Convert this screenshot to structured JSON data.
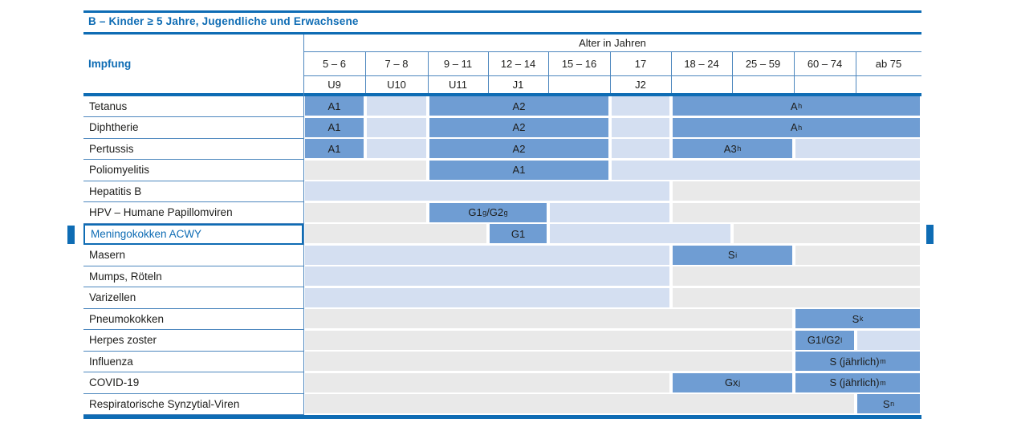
{
  "title": "B – Kinder ≥ 5 Jahre, Jugendliche und Erwachsene",
  "colors": {
    "accent": "#0e6cb4",
    "thin_line": "#4d87be",
    "cell_dark": "#6f9dd3",
    "cell_light": "#d4dff1",
    "cell_gray": "#e9e9e9",
    "text": "#1d1d1b"
  },
  "highlight_row": "Meningokokken ACWY",
  "table": {
    "col_group_label": "Alter in Jahren",
    "row_header_label": "Impfung",
    "age_columns": [
      "5 – 6",
      "7 – 8",
      "9 – 11",
      "12 – 14",
      "15 – 16",
      "17",
      "18 – 24",
      "25 – 59",
      "60 – 74",
      "ab 75"
    ],
    "exam_row": [
      "U9",
      "U10",
      "U11",
      "J1",
      "",
      "J2",
      "",
      "",
      "",
      ""
    ],
    "rows": [
      {
        "label": "Tetanus",
        "highlight": false,
        "bands": [
          {
            "from": 0,
            "to": 0,
            "type": "dark",
            "text": "A1"
          },
          {
            "from": 1,
            "to": 1,
            "type": "light",
            "text": ""
          },
          {
            "from": 2,
            "to": 4,
            "type": "dark",
            "text": "A2"
          },
          {
            "from": 5,
            "to": 5,
            "type": "light",
            "text": ""
          },
          {
            "from": 6,
            "to": 9,
            "type": "dark",
            "text": "A^h"
          }
        ]
      },
      {
        "label": "Diphtherie",
        "highlight": false,
        "bands": [
          {
            "from": 0,
            "to": 0,
            "type": "dark",
            "text": "A1"
          },
          {
            "from": 1,
            "to": 1,
            "type": "light",
            "text": ""
          },
          {
            "from": 2,
            "to": 4,
            "type": "dark",
            "text": "A2"
          },
          {
            "from": 5,
            "to": 5,
            "type": "light",
            "text": ""
          },
          {
            "from": 6,
            "to": 9,
            "type": "dark",
            "text": "A^h"
          }
        ]
      },
      {
        "label": "Pertussis",
        "highlight": false,
        "bands": [
          {
            "from": 0,
            "to": 0,
            "type": "dark",
            "text": "A1"
          },
          {
            "from": 1,
            "to": 1,
            "type": "light",
            "text": ""
          },
          {
            "from": 2,
            "to": 4,
            "type": "dark",
            "text": "A2"
          },
          {
            "from": 5,
            "to": 5,
            "type": "light",
            "text": ""
          },
          {
            "from": 6,
            "to": 7,
            "type": "dark",
            "text": "A3^h"
          },
          {
            "from": 8,
            "to": 9,
            "type": "light",
            "text": ""
          }
        ]
      },
      {
        "label": "Poliomyelitis",
        "highlight": false,
        "bands": [
          {
            "from": 0,
            "to": 1,
            "type": "gray",
            "text": ""
          },
          {
            "from": 2,
            "to": 4,
            "type": "dark",
            "text": "A1"
          },
          {
            "from": 5,
            "to": 9,
            "type": "light",
            "text": ""
          }
        ]
      },
      {
        "label": "Hepatitis B",
        "highlight": false,
        "bands": [
          {
            "from": 0,
            "to": 5,
            "type": "light",
            "text": ""
          },
          {
            "from": 6,
            "to": 9,
            "type": "gray",
            "text": ""
          }
        ]
      },
      {
        "label": "HPV – Humane Papillomviren",
        "highlight": false,
        "bands": [
          {
            "from": 0,
            "to": 1,
            "type": "gray",
            "text": ""
          },
          {
            "from": 2,
            "to": 3,
            "type": "dark",
            "text": "G1^g/G2^g"
          },
          {
            "from": 4,
            "to": 5,
            "type": "light",
            "text": ""
          },
          {
            "from": 6,
            "to": 9,
            "type": "gray",
            "text": ""
          }
        ]
      },
      {
        "label": "Meningokokken ACWY",
        "highlight": true,
        "bands": [
          {
            "from": 0,
            "to": 2,
            "type": "gray",
            "text": ""
          },
          {
            "from": 3,
            "to": 3,
            "type": "dark",
            "text": "G1"
          },
          {
            "from": 4,
            "to": 6,
            "type": "light",
            "text": ""
          },
          {
            "from": 7,
            "to": 9,
            "type": "gray",
            "text": ""
          }
        ]
      },
      {
        "label": "Masern",
        "highlight": false,
        "bands": [
          {
            "from": 0,
            "to": 5,
            "type": "light",
            "text": ""
          },
          {
            "from": 6,
            "to": 7,
            "type": "dark",
            "text": "S^i"
          },
          {
            "from": 8,
            "to": 9,
            "type": "gray",
            "text": ""
          }
        ]
      },
      {
        "label": "Mumps, Röteln",
        "highlight": false,
        "bands": [
          {
            "from": 0,
            "to": 5,
            "type": "light",
            "text": ""
          },
          {
            "from": 6,
            "to": 9,
            "type": "gray",
            "text": ""
          }
        ]
      },
      {
        "label": "Varizellen",
        "highlight": false,
        "bands": [
          {
            "from": 0,
            "to": 5,
            "type": "light",
            "text": ""
          },
          {
            "from": 6,
            "to": 9,
            "type": "gray",
            "text": ""
          }
        ]
      },
      {
        "label": "Pneumokokken",
        "highlight": false,
        "bands": [
          {
            "from": 0,
            "to": 7,
            "type": "gray",
            "text": ""
          },
          {
            "from": 8,
            "to": 9,
            "type": "dark",
            "text": "S^k"
          }
        ]
      },
      {
        "label": "Herpes zoster",
        "highlight": false,
        "bands": [
          {
            "from": 0,
            "to": 7,
            "type": "gray",
            "text": ""
          },
          {
            "from": 8,
            "to": 8,
            "type": "dark",
            "text": "G1^l/G2^l"
          },
          {
            "from": 9,
            "to": 9,
            "type": "light",
            "text": ""
          }
        ]
      },
      {
        "label": "Influenza",
        "highlight": false,
        "bands": [
          {
            "from": 0,
            "to": 7,
            "type": "gray",
            "text": ""
          },
          {
            "from": 8,
            "to": 9,
            "type": "dark",
            "text": "S (jährlich)^m"
          }
        ]
      },
      {
        "label": "COVID-19",
        "highlight": false,
        "bands": [
          {
            "from": 0,
            "to": 5,
            "type": "gray",
            "text": ""
          },
          {
            "from": 6,
            "to": 7,
            "type": "dark",
            "text": "Gx^j"
          },
          {
            "from": 8,
            "to": 9,
            "type": "dark",
            "text": "S (jährlich)^m"
          }
        ]
      },
      {
        "label": "Respiratorische Synzytial-Viren",
        "highlight": false,
        "bands": [
          {
            "from": 0,
            "to": 8,
            "type": "gray",
            "text": ""
          },
          {
            "from": 9,
            "to": 9,
            "type": "dark",
            "text": "S^n"
          }
        ]
      }
    ]
  }
}
